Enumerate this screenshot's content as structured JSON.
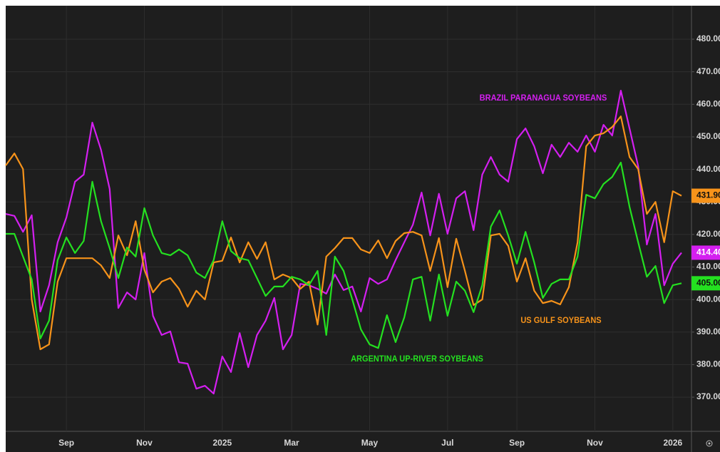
{
  "chart_data": {
    "type": "line",
    "categories": [
      null,
      null,
      null,
      null,
      null,
      null,
      null,
      "Sep",
      null,
      null,
      null,
      null,
      null,
      null,
      null,
      null,
      "Nov",
      null,
      null,
      null,
      null,
      null,
      null,
      null,
      null,
      "2025",
      null,
      null,
      null,
      null,
      null,
      null,
      null,
      "Mar",
      null,
      null,
      null,
      null,
      null,
      null,
      null,
      null,
      "May",
      null,
      null,
      null,
      null,
      null,
      null,
      null,
      null,
      "Jul",
      null,
      null,
      null,
      null,
      null,
      null,
      null,
      "Sep",
      null,
      null,
      null,
      null,
      null,
      null,
      null,
      null,
      "Nov",
      null,
      null,
      null,
      null,
      null,
      null,
      null,
      null,
      "2026",
      null
    ],
    "series": [
      {
        "name": "BRAZIL PARANAGUA SOYBEANS",
        "color": "#d41ff0",
        "last_label": "414.40",
        "values": [
          426.3,
          425.7,
          420.8,
          425.9,
          396.3,
          404.4,
          417.6,
          425.2,
          436.2,
          438.4,
          454.4,
          446.0,
          434.0,
          397.4,
          402.2,
          400.0,
          414.3,
          395.0,
          389.1,
          390.2,
          380.7,
          380.3,
          372.6,
          373.5,
          371.1,
          382.5,
          377.7,
          389.7,
          379.2,
          389.1,
          393.5,
          400.5,
          384.7,
          389.1,
          404.8,
          404.4,
          403.3,
          401.8,
          407.7,
          402.9,
          404.0,
          396.3,
          406.6,
          404.8,
          406.2,
          412.1,
          417.6,
          423.0,
          432.9,
          419.7,
          432.5,
          420.2,
          431.1,
          433.3,
          421.3,
          438.4,
          443.8,
          438.4,
          436.2,
          449.3,
          452.6,
          447.1,
          438.8,
          447.6,
          443.8,
          448.2,
          445.4,
          450.4,
          445.4,
          453.7,
          450.4,
          464.2,
          452.6,
          441.0,
          416.9,
          426.3,
          404.4,
          411.0,
          414.4
        ]
      },
      {
        "name": "US GULF SOYBEANS",
        "color": "#f7931a",
        "last_label": "431.90",
        "values": [
          441.2,
          444.9,
          440.1,
          400.0,
          384.7,
          386.2,
          405.5,
          412.7,
          412.7,
          412.7,
          412.7,
          410.5,
          406.6,
          419.7,
          413.6,
          424.1,
          409.2,
          402.2,
          405.5,
          406.6,
          403.3,
          397.8,
          402.7,
          400.0,
          411.4,
          411.9,
          419.1,
          411.4,
          417.6,
          412.5,
          417.6,
          406.2,
          407.7,
          406.6,
          403.3,
          405.5,
          392.3,
          413.2,
          415.8,
          418.9,
          418.9,
          415.4,
          414.3,
          418.2,
          412.7,
          418.0,
          420.4,
          420.8,
          419.7,
          408.8,
          418.9,
          403.8,
          418.7,
          408.8,
          398.3,
          400.0,
          419.7,
          420.2,
          416.5,
          405.5,
          412.7,
          402.7,
          398.9,
          399.6,
          398.5,
          403.8,
          417.6,
          447.1,
          450.4,
          451.1,
          453.0,
          456.3,
          443.8,
          440.1,
          426.3,
          430.0,
          417.6,
          433.3,
          431.9
        ]
      },
      {
        "name": "ARGENTINA UP-RIVER SOYBEANS",
        "color": "#24e020",
        "last_label": "405.00",
        "values": [
          420.2,
          420.2,
          413.2,
          406.2,
          388.0,
          393.5,
          412.1,
          419.1,
          414.3,
          418.0,
          436.2,
          424.1,
          415.8,
          406.6,
          416.0,
          413.2,
          428.1,
          419.7,
          414.3,
          413.6,
          415.4,
          413.6,
          408.3,
          406.6,
          412.1,
          424.1,
          414.9,
          412.7,
          412.1,
          406.6,
          401.1,
          404.0,
          404.0,
          407.0,
          406.2,
          404.4,
          408.8,
          389.1,
          413.2,
          408.8,
          400.0,
          390.8,
          386.2,
          385.1,
          395.2,
          386.9,
          394.5,
          406.2,
          407.0,
          393.5,
          407.7,
          395.0,
          405.5,
          402.7,
          396.1,
          404.4,
          422.4,
          427.4,
          419.7,
          411.0,
          420.8,
          411.4,
          400.5,
          404.8,
          406.2,
          406.2,
          413.2,
          432.2,
          431.1,
          435.5,
          437.7,
          442.1,
          428.5,
          417.6,
          407.0,
          410.3,
          398.9,
          404.4,
          405.0
        ]
      }
    ],
    "ylim": [
      359.5,
      490.3
    ],
    "yticks": [
      {
        "value": 370,
        "label": "370.00"
      },
      {
        "value": 380,
        "label": "380.00"
      },
      {
        "value": 390,
        "label": "390.00"
      },
      {
        "value": 400,
        "label": "400.00"
      },
      {
        "value": 410,
        "label": "410.00"
      },
      {
        "value": 420,
        "label": "420.00"
      },
      {
        "value": 430,
        "label": "430.00"
      },
      {
        "value": 440,
        "label": "440.00"
      },
      {
        "value": 450,
        "label": "450.00"
      },
      {
        "value": 460,
        "label": "460.00"
      },
      {
        "value": 470,
        "label": "470.00"
      },
      {
        "value": 480,
        "label": "480.00"
      }
    ],
    "grid": true
  }
}
